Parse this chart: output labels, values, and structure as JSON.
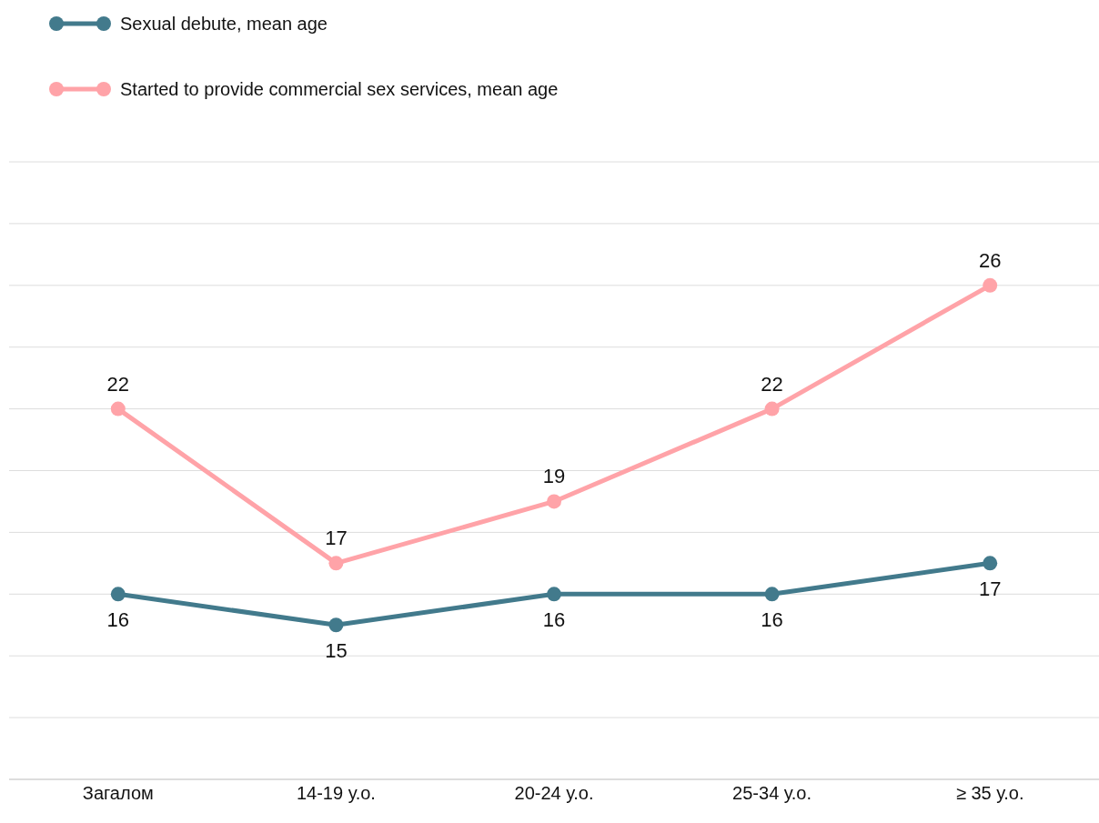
{
  "chart_data": {
    "type": "line",
    "categories": [
      "Загалом",
      "14-19 у.о.",
      "20-24 у.о.",
      "25-34 у.о.",
      "≥ 35 у.о."
    ],
    "series": [
      {
        "name": "Sexual debute, mean age",
        "color": "#427a8c",
        "values": [
          16,
          15,
          16,
          16,
          17
        ]
      },
      {
        "name": "Started to provide commercial sex services, mean age",
        "color": "#ffa3a8",
        "values": [
          22,
          17,
          19,
          22,
          26
        ]
      }
    ],
    "ylim": [
      10,
      30
    ],
    "yticks": [
      {
        "value": 10,
        "label": null
      },
      {
        "value": 12,
        "label": null
      },
      {
        "value": 14,
        "label": null
      },
      {
        "value": 16,
        "label": null
      },
      {
        "value": 18,
        "label": null
      },
      {
        "value": 20,
        "label": null
      },
      {
        "value": 22,
        "label": null
      },
      {
        "value": 24,
        "label": null
      },
      {
        "value": 26,
        "label": null
      },
      {
        "value": 28,
        "label": null
      },
      {
        "value": 30,
        "label": null
      }
    ],
    "tick_labels": "x",
    "grid": "y",
    "legend": "top left",
    "marker": "circle",
    "data_labels": true
  }
}
